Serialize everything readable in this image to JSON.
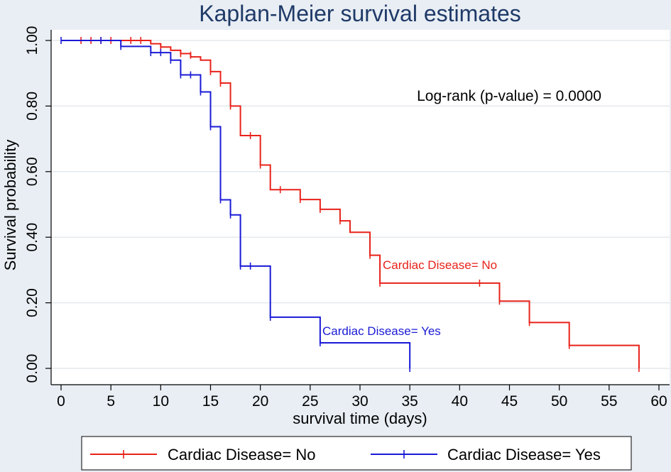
{
  "chart_data": {
    "type": "line",
    "subtype": "kaplan-meier-step",
    "title": "Kaplan-Meier survival estimates",
    "xlabel": "survival time (days)",
    "ylabel": "Survival probability",
    "xlim": [
      0,
      60
    ],
    "ylim": [
      0,
      1
    ],
    "x_ticks": [
      "0",
      "5",
      "10",
      "15",
      "20",
      "25",
      "30",
      "35",
      "40",
      "45",
      "50",
      "55",
      "60"
    ],
    "y_ticks": [
      "0.00",
      "0.20",
      "0.40",
      "0.60",
      "0.80",
      "1.00"
    ],
    "grid": true,
    "annotation": "Log-rank (p-value) = 0.0000",
    "legend_position": "bottom",
    "series": [
      {
        "name": "Cardiac Disease= No",
        "label": "Cardiac Disease= No",
        "color": "#e8221a",
        "steps": [
          [
            0,
            1.0
          ],
          [
            9,
            0.99
          ],
          [
            10,
            0.98
          ],
          [
            11,
            0.97
          ],
          [
            12,
            0.96
          ],
          [
            13,
            0.95
          ],
          [
            14,
            0.94
          ],
          [
            15,
            0.905
          ],
          [
            16,
            0.87
          ],
          [
            17,
            0.8
          ],
          [
            18,
            0.71
          ],
          [
            20,
            0.62
          ],
          [
            21,
            0.545
          ],
          [
            24,
            0.515
          ],
          [
            26,
            0.485
          ],
          [
            28,
            0.45
          ],
          [
            29,
            0.415
          ],
          [
            31,
            0.345
          ],
          [
            32,
            0.26
          ],
          [
            44,
            0.205
          ],
          [
            47,
            0.14
          ],
          [
            51,
            0.07
          ],
          [
            58,
            0.0
          ]
        ],
        "censored": [
          [
            2,
            1.0
          ],
          [
            3,
            1.0
          ],
          [
            4,
            1.0
          ],
          [
            5,
            1.0
          ],
          [
            7,
            1.0
          ],
          [
            8,
            1.0
          ],
          [
            10,
            0.98
          ],
          [
            12,
            0.96
          ],
          [
            13,
            0.955
          ],
          [
            15,
            0.905
          ],
          [
            16,
            0.87
          ],
          [
            17,
            0.8
          ],
          [
            19,
            0.71
          ],
          [
            20,
            0.62
          ],
          [
            22,
            0.545
          ],
          [
            24,
            0.515
          ],
          [
            26,
            0.485
          ],
          [
            28,
            0.45
          ],
          [
            31,
            0.345
          ],
          [
            32,
            0.26
          ],
          [
            42,
            0.26
          ],
          [
            44,
            0.205
          ],
          [
            47,
            0.14
          ],
          [
            51,
            0.07
          ],
          [
            58,
            0.0
          ]
        ]
      },
      {
        "name": "Cardiac Disease= Yes",
        "label": "Cardiac Disease= Yes",
        "color": "#1a1ad6",
        "steps": [
          [
            0,
            1.0
          ],
          [
            6,
            0.982
          ],
          [
            9,
            0.963
          ],
          [
            11,
            0.94
          ],
          [
            12,
            0.895
          ],
          [
            14,
            0.843
          ],
          [
            15,
            0.737
          ],
          [
            16,
            0.514
          ],
          [
            17,
            0.468
          ],
          [
            18,
            0.312
          ],
          [
            21,
            0.156
          ],
          [
            26,
            0.078
          ],
          [
            35,
            0.0
          ]
        ],
        "censored": [
          [
            0,
            1.0
          ],
          [
            4,
            1.0
          ],
          [
            6,
            0.982
          ],
          [
            9,
            0.963
          ],
          [
            10,
            0.963
          ],
          [
            11,
            0.94
          ],
          [
            12,
            0.895
          ],
          [
            13,
            0.895
          ],
          [
            14,
            0.843
          ],
          [
            15,
            0.737
          ],
          [
            16,
            0.514
          ],
          [
            17,
            0.468
          ],
          [
            18,
            0.312
          ],
          [
            19,
            0.312
          ],
          [
            21,
            0.156
          ],
          [
            26,
            0.078
          ],
          [
            35,
            0.0
          ]
        ]
      }
    ]
  }
}
